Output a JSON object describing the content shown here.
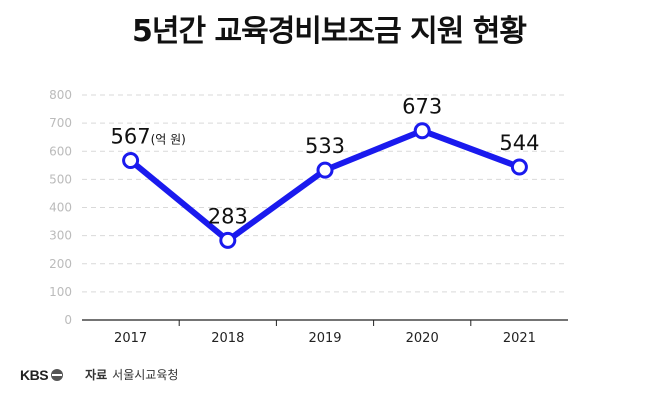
{
  "header": {
    "title": "5년간 교육경비보조금 지원 현황"
  },
  "chart_data": {
    "type": "line",
    "title": "5년간 교육경비보조금 지원 현황",
    "categories": [
      "2017",
      "2018",
      "2019",
      "2020",
      "2021"
    ],
    "series": [
      {
        "name": "교육경비보조금",
        "values": [
          567,
          283,
          533,
          673,
          544
        ]
      }
    ],
    "data_labels": [
      "567",
      "283",
      "533",
      "673",
      "544"
    ],
    "unit_label": "(억 원)",
    "yticks": [
      "0",
      "100",
      "200",
      "300",
      "400",
      "500",
      "600",
      "700",
      "800"
    ],
    "ylim": [
      0,
      800
    ],
    "xlabel": "",
    "ylabel": "",
    "grid": true,
    "line_color": "#1a1aee"
  },
  "footer": {
    "logo": "KBS",
    "source_label": "자료",
    "source_value": "서울시교육청"
  }
}
